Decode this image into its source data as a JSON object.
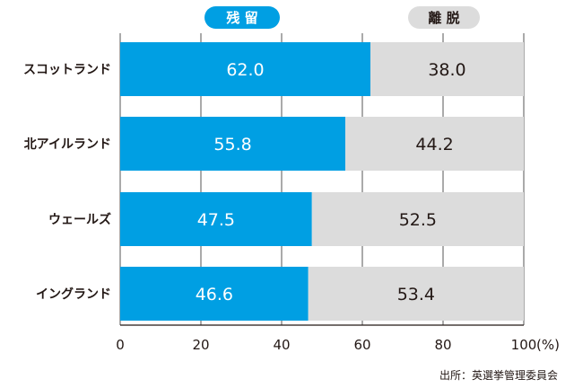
{
  "chart_data": {
    "type": "bar",
    "orientation": "horizontal",
    "stacked": true,
    "categories": [
      "スコットランド",
      "北アイルランド",
      "ウェールズ",
      "イングランド"
    ],
    "series": [
      {
        "name": "残 留",
        "values": [
          62.0,
          55.8,
          47.5,
          46.6
        ],
        "color": "#009fe3",
        "label_color": "#ffffff"
      },
      {
        "name": "離 脱",
        "values": [
          38.0,
          44.2,
          52.5,
          53.4
        ],
        "color": "#dcdcdc",
        "label_color": "#231815"
      }
    ],
    "x_ticks": [
      "0",
      "20",
      "40",
      "60",
      "80",
      "100"
    ],
    "x_unit": "(%)",
    "xlim": [
      0,
      100
    ],
    "grid": true,
    "legend_position": "top",
    "source": "出所：英選挙管理委員会"
  }
}
